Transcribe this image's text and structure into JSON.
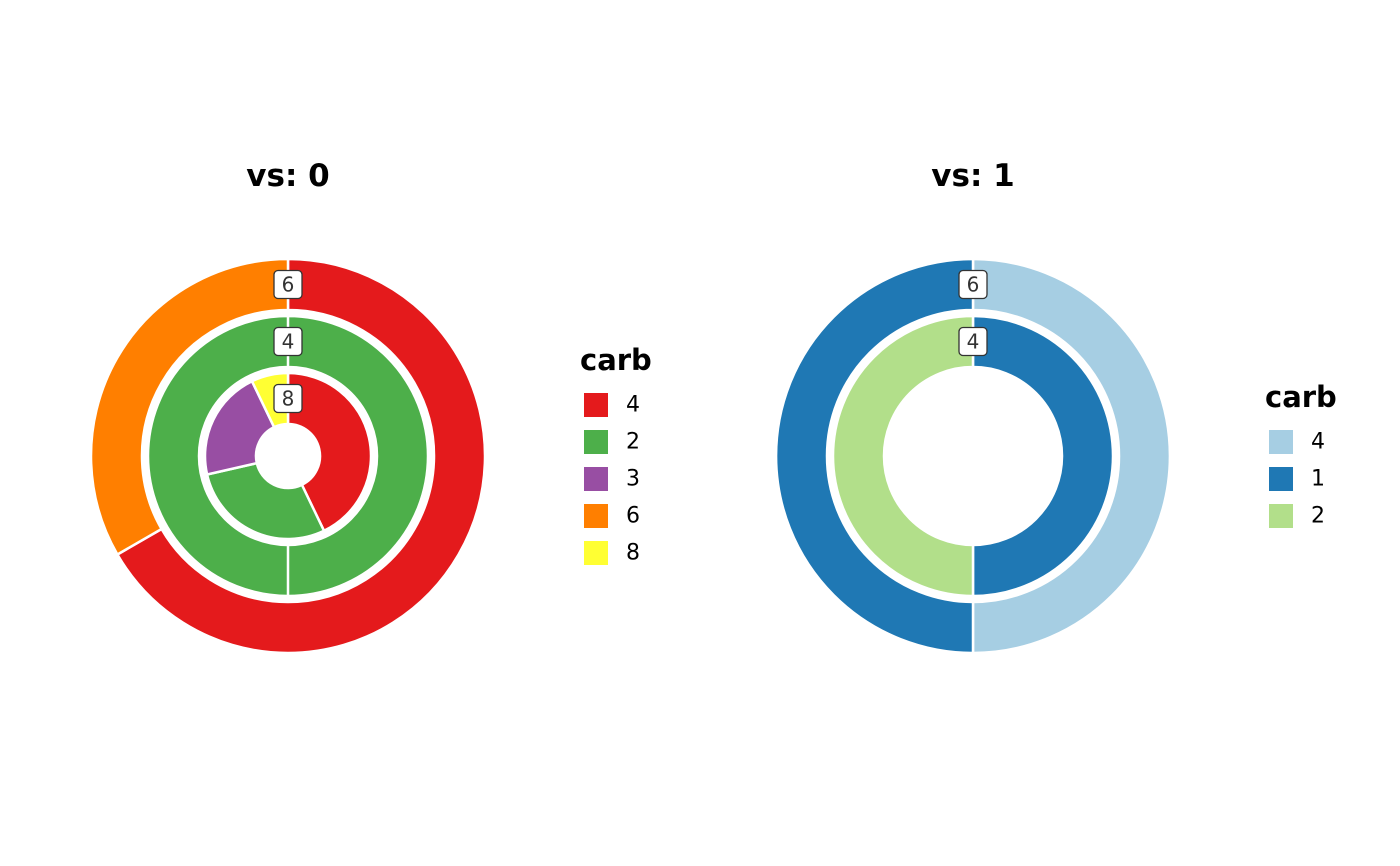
{
  "chart_data": [
    {
      "type": "pie",
      "title": "vs: 0",
      "legend_title": "carb",
      "legend": [
        {
          "name": "4",
          "color": "#e41a1c"
        },
        {
          "name": "2",
          "color": "#4daf4a"
        },
        {
          "name": "3",
          "color": "#984ea3"
        },
        {
          "name": "6",
          "color": "#ff7f00"
        },
        {
          "name": "8",
          "color": "#ffff33"
        }
      ],
      "rings": [
        {
          "label": "6",
          "categories": [
            "4",
            "6"
          ],
          "values": [
            2,
            1
          ]
        },
        {
          "label": "4",
          "categories": [
            "2"
          ],
          "values": [
            1
          ]
        },
        {
          "label": "8",
          "categories": [
            "4",
            "2",
            "3",
            "8"
          ],
          "values": [
            6,
            4,
            3,
            1
          ]
        }
      ]
    },
    {
      "type": "pie",
      "title": "vs: 1",
      "legend_title": "carb",
      "legend": [
        {
          "name": "4",
          "color": "#a6cee3"
        },
        {
          "name": "1",
          "color": "#1f78b4"
        },
        {
          "name": "2",
          "color": "#b2df8a"
        }
      ],
      "rings": [
        {
          "label": "6",
          "categories": [
            "4",
            "1"
          ],
          "values": [
            2,
            2
          ]
        },
        {
          "label": "4",
          "categories": [
            "1",
            "2"
          ],
          "values": [
            5,
            5
          ]
        }
      ]
    }
  ]
}
